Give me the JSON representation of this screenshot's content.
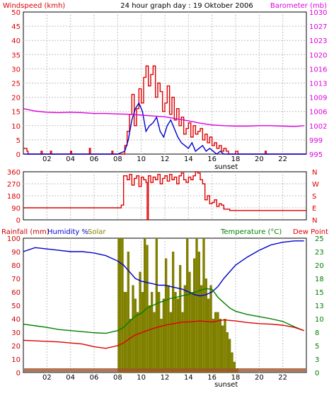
{
  "header": {
    "left_label": "Windspeed (kmh)",
    "title": "24 hour graph day : 19 Oktober 2006",
    "right_label": "Barometer (mb)"
  },
  "colors": {
    "wind": "#dd0000",
    "gust": "#0000cc",
    "baro": "#dd00dd",
    "dir": "#dd0000",
    "rain": "#cc0000",
    "humidity": "#0000cc",
    "solar": "#808000",
    "temperature": "#008000",
    "dewpoint": "#dd0000",
    "grid": "#c0c0c0",
    "frame": "#000000"
  },
  "bottom_header": {
    "rainfall": "Rainfall (mm)",
    "humidity": "Humidity %",
    "solar": "Solar",
    "temperature": "Temperature (°C)",
    "dewpoint": "Dew Point"
  },
  "direction_labels": [
    "N",
    "W",
    "S",
    "E",
    "N"
  ],
  "sunset_label": "sunset",
  "chart_data": [
    {
      "type": "line",
      "title": "24 hour graph day : 19 Oktober 2006",
      "x_tick_labels": [
        "02",
        "04",
        "06",
        "08",
        "10",
        "12",
        "14",
        "16",
        "18",
        "20",
        "22"
      ],
      "xlim": [
        0,
        24
      ],
      "ylabel_left": "Windspeed (kmh)",
      "ylim_left": [
        0,
        50
      ],
      "yticks_left": [
        "0",
        "5",
        "10",
        "15",
        "20",
        "25",
        "30",
        "35",
        "40",
        "45",
        "50"
      ],
      "ylabel_right": "Barometer (mb)",
      "ylim_right": [
        995,
        1030
      ],
      "yticks_right": [
        "995",
        "999",
        "1002",
        "1006",
        "1009",
        "1013",
        "1016",
        "1020",
        "1023",
        "1027",
        "1030"
      ],
      "series": [
        {
          "name": "Windspeed (kmh)",
          "axis": "left",
          "style": "step",
          "x": [
            0,
            0.3,
            0.4,
            1.5,
            1.6,
            2.3,
            2.4,
            4.0,
            4.1,
            5.6,
            5.7,
            7.5,
            7.6,
            8.6,
            8.8,
            9.0,
            9.2,
            9.4,
            9.6,
            9.8,
            10.0,
            10.2,
            10.4,
            10.6,
            10.8,
            11.0,
            11.2,
            11.4,
            11.6,
            11.8,
            12.0,
            12.2,
            12.4,
            12.6,
            12.8,
            13.0,
            13.2,
            13.4,
            13.6,
            13.8,
            14.0,
            14.2,
            14.4,
            14.6,
            14.8,
            15.0,
            15.2,
            15.4,
            15.6,
            15.8,
            16.0,
            16.2,
            16.4,
            16.6,
            16.8,
            17.0,
            17.2,
            17.4,
            18.0,
            18.2,
            20.5,
            20.6,
            24
          ],
          "y": [
            2,
            1,
            0,
            1,
            0,
            1,
            0,
            1,
            0,
            2,
            0,
            1,
            0,
            3,
            8,
            14,
            21,
            10,
            16,
            23,
            18,
            27,
            31,
            24,
            28,
            31,
            20,
            25,
            22,
            15,
            18,
            24,
            14,
            20,
            12,
            16,
            10,
            13,
            7,
            9,
            11,
            6,
            10,
            7,
            8,
            9,
            5,
            7,
            4,
            6,
            3,
            4,
            2,
            3,
            1,
            2,
            1,
            0,
            1,
            0,
            1,
            0,
            0
          ]
        },
        {
          "name": "Gust",
          "axis": "left",
          "x": [
            0,
            8.0,
            8.6,
            8.9,
            9.2,
            9.5,
            9.8,
            10.1,
            10.4,
            10.7,
            11.0,
            11.3,
            11.6,
            11.9,
            12.2,
            12.5,
            12.8,
            13.1,
            13.4,
            13.7,
            14.0,
            14.3,
            14.6,
            14.9,
            15.2,
            15.5,
            15.8,
            16.1,
            16.4,
            16.7,
            17.0,
            24
          ],
          "y": [
            0,
            0,
            1,
            5,
            12,
            16,
            18,
            15,
            8,
            10,
            11,
            13,
            8,
            6,
            10,
            12,
            9,
            6,
            4,
            3,
            2,
            4,
            1,
            2,
            3,
            1,
            2,
            1,
            0,
            1,
            0,
            0
          ]
        },
        {
          "name": "Barometer (mb)",
          "axis": "right",
          "x": [
            0,
            1,
            2,
            3,
            4,
            5,
            6,
            7,
            8,
            9,
            10,
            11,
            12,
            13,
            14,
            15,
            16,
            17,
            18,
            19,
            20,
            21,
            22,
            23,
            23.8
          ],
          "y": [
            1006.2,
            1005.6,
            1005.3,
            1005.2,
            1005.3,
            1005.2,
            1005.0,
            1005.0,
            1004.9,
            1004.8,
            1004.6,
            1004.4,
            1004.2,
            1003.7,
            1003.2,
            1002.6,
            1002.2,
            1002.0,
            1001.9,
            1001.9,
            1002.0,
            1002.0,
            1001.9,
            1001.8,
            1002.0
          ]
        }
      ]
    },
    {
      "type": "line",
      "title": "",
      "xlim": [
        0,
        24
      ],
      "ylim": [
        0,
        360
      ],
      "yticks": [
        "0",
        "90",
        "180",
        "270",
        "360"
      ],
      "series": [
        {
          "name": "Wind direction",
          "x": [
            0,
            1,
            2,
            3,
            4,
            5,
            6,
            7,
            8,
            8.3,
            8.5,
            8.8,
            9.0,
            9.2,
            9.4,
            9.6,
            9.8,
            10.0,
            10.2,
            10.4,
            10.5,
            10.6,
            10.8,
            11.0,
            11.2,
            11.4,
            11.6,
            11.8,
            12.0,
            12.2,
            12.4,
            12.6,
            12.8,
            13.0,
            13.2,
            13.4,
            13.6,
            13.8,
            14.0,
            14.2,
            14.4,
            14.6,
            14.8,
            15.0,
            15.2,
            15.4,
            15.6,
            15.8,
            16.0,
            16.2,
            16.4,
            16.6,
            16.8,
            17.0,
            17.5,
            18,
            19,
            20,
            21,
            22,
            23,
            24
          ],
          "y": [
            90,
            90,
            90,
            90,
            90,
            90,
            90,
            90,
            90,
            110,
            330,
            300,
            340,
            260,
            310,
            330,
            250,
            320,
            300,
            280,
            0,
            330,
            280,
            320,
            300,
            340,
            270,
            310,
            330,
            290,
            340,
            300,
            320,
            270,
            330,
            350,
            300,
            280,
            320,
            300,
            330,
            370,
            350,
            300,
            270,
            150,
            180,
            120,
            130,
            150,
            100,
            120,
            110,
            80,
            70,
            70,
            70,
            70,
            70,
            70,
            70,
            70
          ]
        }
      ]
    },
    {
      "type": "line",
      "title": "",
      "xlim": [
        0,
        24
      ],
      "ylabel_left": "Rainfall (mm) / Humidity % / Solar",
      "ylim_left": [
        0,
        100
      ],
      "yticks_left": [
        "0",
        "10",
        "20",
        "30",
        "40",
        "50",
        "60",
        "70",
        "80",
        "90",
        "100"
      ],
      "ylabel_right": "Temperature (°C) / Dew Point",
      "ylim_right": [
        0,
        25
      ],
      "yticks_right": [
        "0",
        "3",
        "5",
        "8",
        "10",
        "13",
        "15",
        "18",
        "20",
        "23",
        "25"
      ],
      "series": [
        {
          "name": "Solar",
          "axis": "left",
          "style": "bar",
          "x": [
            8.0,
            8.3,
            8.5,
            8.8,
            9.0,
            9.2,
            9.4,
            9.6,
            9.8,
            10.0,
            10.2,
            10.4,
            10.6,
            10.8,
            11.0,
            11.2,
            11.4,
            11.6,
            11.8,
            12.0,
            12.2,
            12.4,
            12.6,
            12.8,
            13.0,
            13.2,
            13.4,
            13.6,
            13.8,
            14.0,
            14.2,
            14.4,
            14.6,
            14.8,
            15.0,
            15.2,
            15.4,
            15.6,
            15.8,
            16.0,
            16.2,
            16.4,
            16.6,
            16.8,
            17.0,
            17.2,
            17.4,
            17.6,
            17.8,
            18.0
          ],
          "y": [
            100,
            100,
            60,
            90,
            40,
            65,
            55,
            45,
            75,
            60,
            100,
            95,
            50,
            60,
            45,
            100,
            60,
            40,
            55,
            85,
            65,
            45,
            90,
            60,
            55,
            80,
            45,
            65,
            100,
            75,
            60,
            85,
            100,
            90,
            65,
            100,
            70,
            55,
            65,
            40,
            45,
            45,
            40,
            35,
            40,
            30,
            25,
            15,
            8,
            3
          ]
        },
        {
          "name": "Humidity %",
          "axis": "left",
          "x": [
            0,
            1,
            2,
            3,
            4,
            5,
            6,
            7,
            8,
            8.5,
            9,
            9.5,
            10,
            10.5,
            11,
            11.5,
            12,
            12.5,
            13,
            13.5,
            14,
            14.5,
            15,
            15.5,
            16,
            16.5,
            17,
            17.5,
            18,
            19,
            20,
            21,
            22,
            23,
            23.8
          ],
          "y": [
            90,
            93,
            92,
            91,
            90,
            90,
            89,
            87,
            83,
            80,
            75,
            70,
            68,
            67,
            66,
            65,
            65,
            64,
            63,
            62,
            60,
            58,
            57,
            58,
            60,
            64,
            70,
            75,
            80,
            86,
            91,
            95,
            97,
            98,
            98
          ]
        },
        {
          "name": "Temperature (°C)",
          "axis": "right",
          "x": [
            0,
            1,
            2,
            3,
            4,
            5,
            6,
            7,
            8,
            8.5,
            9,
            9.5,
            10,
            10.5,
            11,
            11.5,
            12,
            12.5,
            13,
            13.5,
            14,
            14.5,
            15,
            15.5,
            16,
            16.5,
            17,
            17.5,
            18,
            19,
            20,
            21,
            22,
            23,
            23.8
          ],
          "y": [
            9.0,
            8.7,
            8.4,
            8.0,
            7.8,
            7.6,
            7.4,
            7.3,
            7.8,
            8.4,
            9.5,
            10.5,
            11.0,
            12.0,
            12.5,
            13.0,
            13.4,
            13.8,
            14.0,
            14.3,
            14.5,
            14.9,
            15.3,
            15.6,
            15.5,
            14.0,
            13.0,
            12.0,
            11.4,
            10.8,
            10.4,
            10.0,
            9.5,
            8.5,
            7.8
          ]
        },
        {
          "name": "Dew Point",
          "axis": "right",
          "x": [
            0,
            1,
            2,
            3,
            4,
            5,
            6,
            7,
            8,
            8.5,
            9,
            9.5,
            10,
            10.5,
            11,
            11.5,
            12,
            12.5,
            13,
            13.5,
            14,
            14.5,
            15,
            15.5,
            16,
            16.5,
            17,
            17.5,
            18,
            19,
            20,
            21,
            22,
            23,
            23.8
          ],
          "y": [
            6.0,
            5.9,
            5.8,
            5.7,
            5.5,
            5.3,
            4.8,
            4.5,
            5.0,
            5.5,
            6.3,
            7.0,
            7.4,
            7.8,
            8.2,
            8.5,
            8.8,
            9.0,
            9.2,
            9.4,
            9.4,
            9.5,
            9.6,
            9.5,
            9.4,
            9.6,
            9.8,
            9.7,
            9.6,
            9.3,
            9.1,
            9.0,
            8.8,
            8.4,
            7.8
          ]
        }
      ]
    }
  ]
}
